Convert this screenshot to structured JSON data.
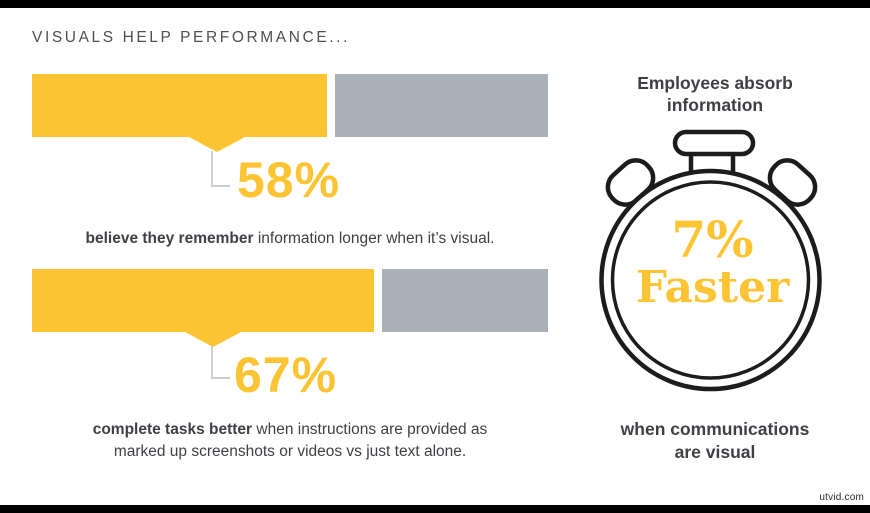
{
  "title": "VISUALS HELP PERFORMANCE...",
  "colors": {
    "yellow": "#FCC433",
    "gray": "#ABB1B8",
    "dark_text": "#3E4045",
    "title_text": "#4D4F54",
    "outline": "#1C1C1C",
    "connector": "#CBCFD3",
    "edge_bar": "#000000"
  },
  "chart_data": {
    "type": "bar",
    "orientation": "horizontal",
    "title": "VISUALS HELP PERFORMANCE...",
    "unit": "%",
    "xlim": [
      0,
      100
    ],
    "categories": [
      "believe they remember information longer when it’s visual.",
      "complete tasks better when instructions are provided as marked up screenshots or videos vs just text alone."
    ],
    "values": [
      58,
      67
    ],
    "value_labels": [
      "58%",
      "67%"
    ],
    "bar_fill_color": "#FCC433",
    "bar_remainder_color": "#ABB1B8",
    "legend": "none",
    "grid": "off",
    "stat_callout": {
      "value": "7%",
      "word": "Faster",
      "heading": "Employees absorb information",
      "caption": "when communications are visual"
    }
  },
  "bars": [
    {
      "value_label": "58%",
      "caption_bold": "believe they remember",
      "caption_rest": " information longer when it’s visual."
    },
    {
      "value_label": "67%",
      "caption_bold": "complete tasks better",
      "caption_rest": " when instructions are provided as",
      "caption_line2": "marked up screenshots or videos vs just text alone."
    }
  ],
  "stopwatch": {
    "heading_line1": "Employees absorb",
    "heading_line2": "information",
    "value": "7%",
    "word": "Faster",
    "caption_line1": "when communications",
    "caption_line2": "are visual"
  },
  "watermark": "utvid.com"
}
